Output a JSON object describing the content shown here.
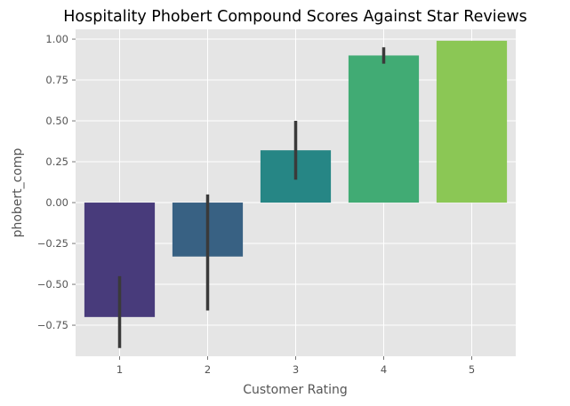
{
  "chart_data": {
    "type": "bar",
    "title": "Hospitality Phobert Compound Scores Against Star Reviews",
    "xlabel": "Customer Rating",
    "ylabel": "phobert_comp",
    "categories": [
      "1",
      "2",
      "3",
      "4",
      "5"
    ],
    "values": [
      -0.7,
      -0.33,
      0.32,
      0.9,
      0.99
    ],
    "error_bars": [
      {
        "low": -0.89,
        "high": -0.45
      },
      {
        "low": -0.66,
        "high": 0.05
      },
      {
        "low": 0.14,
        "high": 0.5
      },
      {
        "low": 0.85,
        "high": 0.95
      },
      {
        "low": 0.99,
        "high": 0.99
      }
    ],
    "bar_colors": [
      "#483b7b",
      "#386183",
      "#268685",
      "#41ab74",
      "#8bc755"
    ],
    "ylim": [
      -0.94,
      1.06
    ],
    "yticks": [
      1.0,
      0.75,
      0.5,
      0.25,
      0.0,
      -0.25,
      -0.5,
      -0.75
    ],
    "ytick_labels": [
      "1.00",
      "0.75",
      "0.50",
      "0.25",
      "0.00",
      "−0.25",
      "−0.50",
      "−0.75"
    ],
    "grid": true,
    "legend": "none",
    "background_color": "#e5e5e5",
    "grid_color": "#ffffff",
    "error_bar_color": "#3a3a3a"
  }
}
